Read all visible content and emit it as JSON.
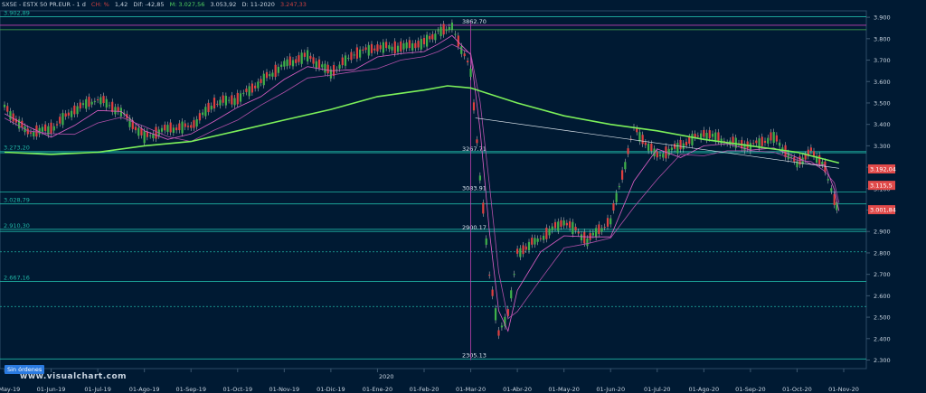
{
  "header": {
    "symbol": "SX5E - ESTX 50 PR.EUR - 1 d",
    "change_label": "CH: %",
    "open": "1,42",
    "diff": "Dif: -42,85",
    "max": "M: 3.027,56",
    "min": "3.053,92",
    "date": "D: 11-2020",
    "last": "3.247,33"
  },
  "badge": "Sin órdenes",
  "watermark": "www.visualchart.com",
  "year_marker": "2020",
  "colors": {
    "background": "#001a33",
    "up_candle": "#3fb14a",
    "down_candle": "#e04040",
    "ma200": "#7cf05a",
    "ma_short": "#e060c8",
    "hline": "#1fb5a5",
    "vline": "#c040b0"
  },
  "chart_data": {
    "type": "line",
    "title": "",
    "xlabel": "",
    "ylabel": "",
    "ylim": [
      2260,
      3930
    ],
    "yticks": [
      "3.900",
      "3.800",
      "3.700",
      "3.600",
      "3.500",
      "3.400",
      "3.300",
      "3.200",
      "3.100",
      "3.000",
      "2.900",
      "2.800",
      "2.700",
      "2.600",
      "2.500",
      "2.400",
      "2.300"
    ],
    "x_categories": [
      "01-May-19",
      "01-Jun-19",
      "01-Jul-19",
      "01-Ago-19",
      "01-Sep-19",
      "01-Oct-19",
      "01-Nov-19",
      "01-Dic-19",
      "01-Ene-20",
      "01-Feb-20",
      "01-Mar-20",
      "01-Abr-20",
      "01-May-20",
      "01-Jun-20",
      "01-Jul-20",
      "01-Ago-20",
      "01-Sep-20",
      "01-Oct-20",
      "01-Nov-20"
    ],
    "series": [
      {
        "key": "price",
        "x": [
          0,
          0.5,
          1,
          1.5,
          2,
          2.5,
          3,
          3.5,
          4,
          4.5,
          5,
          5.5,
          6,
          6.5,
          7,
          7.5,
          8,
          8.5,
          9,
          9.3,
          9.6,
          10,
          10.2,
          10.4,
          10.6,
          10.8,
          11,
          11.5,
          12,
          12.5,
          13,
          13.5,
          14,
          14.5,
          15,
          15.5,
          16,
          16.5,
          17,
          17.3,
          17.6,
          17.8,
          17.9
        ],
        "values": [
          3480,
          3360,
          3380,
          3470,
          3520,
          3460,
          3340,
          3380,
          3390,
          3500,
          3520,
          3600,
          3680,
          3720,
          3640,
          3730,
          3760,
          3760,
          3780,
          3830,
          3860,
          3650,
          3160,
          2700,
          2420,
          2510,
          2800,
          2870,
          2950,
          2860,
          2950,
          3380,
          3250,
          3300,
          3360,
          3320,
          3300,
          3340,
          3210,
          3280,
          3200,
          3050,
          3002
        ]
      },
      {
        "key": "ma200",
        "x": [
          0,
          1,
          2,
          3,
          4,
          5,
          6,
          7,
          8,
          9,
          9.5,
          10,
          11,
          12,
          13,
          14,
          15,
          16,
          17,
          17.9
        ],
        "values": [
          3270,
          3260,
          3270,
          3300,
          3320,
          3370,
          3420,
          3470,
          3530,
          3560,
          3580,
          3570,
          3500,
          3440,
          3400,
          3370,
          3330,
          3300,
          3270,
          3220
        ]
      }
    ],
    "levels": [
      {
        "value": 3902.89,
        "label": "3.902,89"
      },
      {
        "value": 3862.7,
        "label": "3862.70"
      },
      {
        "value": 3842,
        "label": ""
      },
      {
        "value": 3273.2,
        "label": "3.273,20"
      },
      {
        "value": 3267.71,
        "label": "3267.71"
      },
      {
        "value": 3083.91,
        "label": "3083.91"
      },
      {
        "value": 3028.79,
        "label": "3.028,79"
      },
      {
        "value": 2910.3,
        "label": "2.910,30"
      },
      {
        "value": 2900.17,
        "label": "2900.17"
      },
      {
        "value": 2805,
        "label": ""
      },
      {
        "value": 2667.16,
        "label": "2.667,16"
      },
      {
        "value": 2550,
        "label": ""
      },
      {
        "value": 2305.13,
        "label": "2305.13"
      }
    ],
    "price_tags": [
      {
        "value": 3192.04,
        "label": "3.192,04"
      },
      {
        "value": 3115.5,
        "label": "3.115,5"
      },
      {
        "value": 3001.84,
        "label": "3.001,84"
      }
    ]
  }
}
